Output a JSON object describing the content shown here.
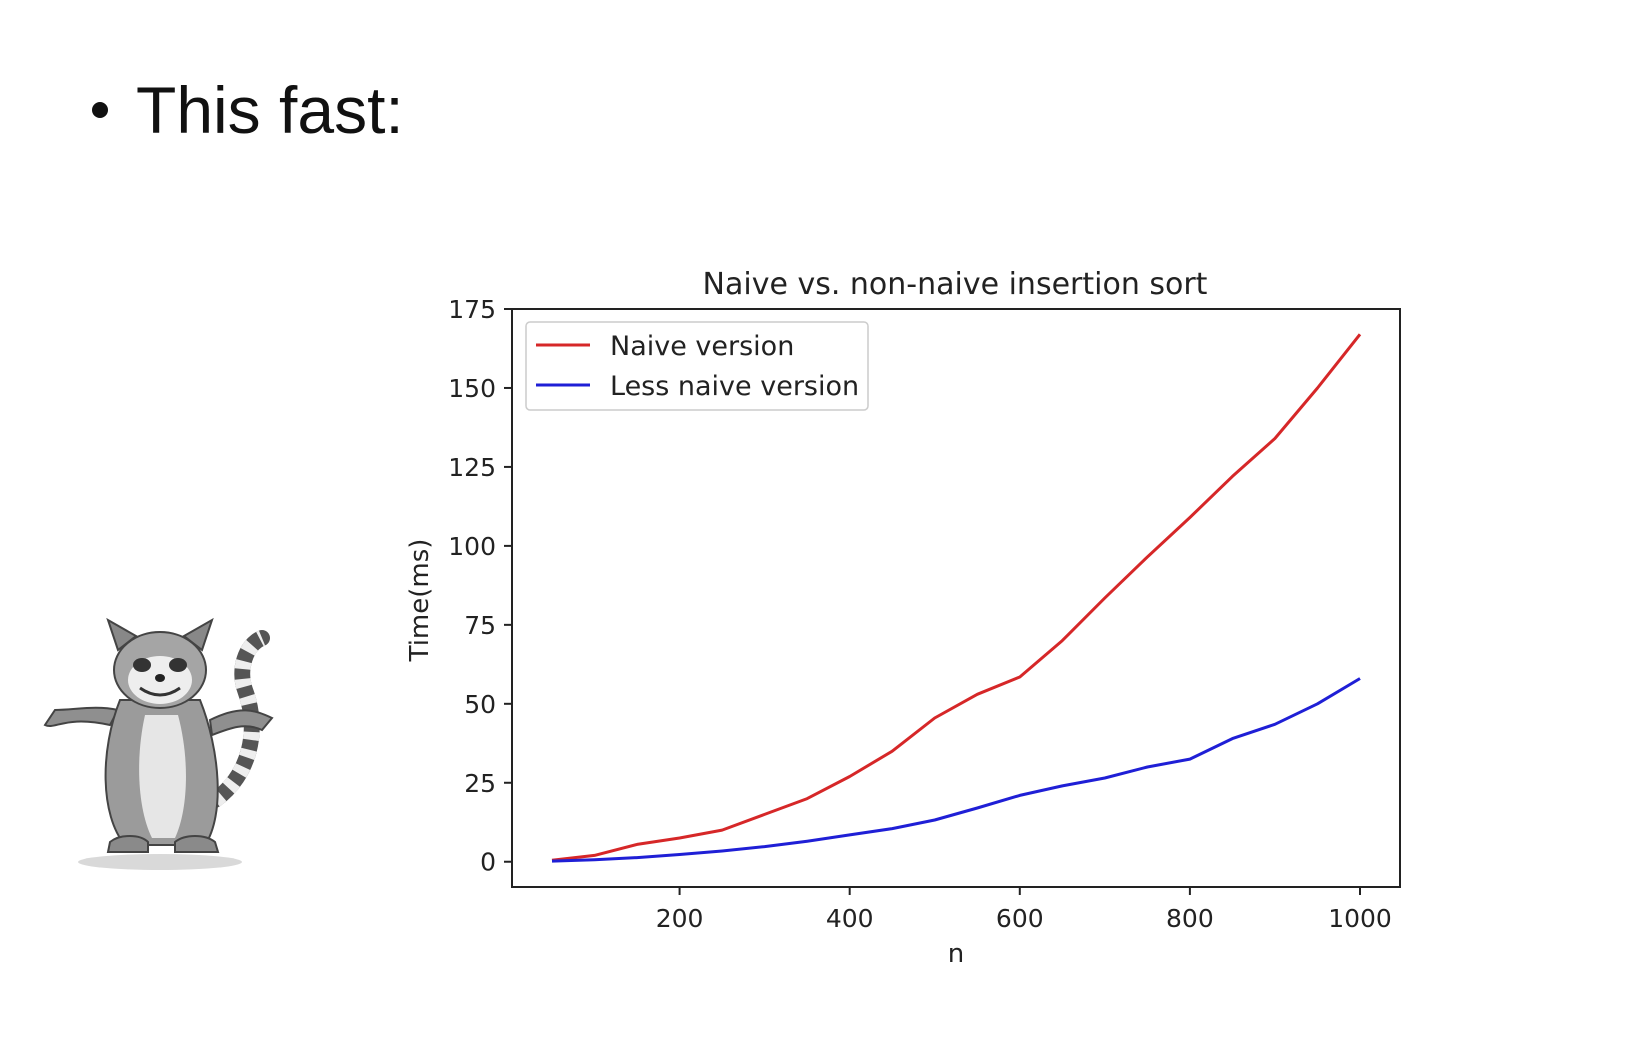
{
  "slide": {
    "bullet_text": "This fast:"
  },
  "colors": {
    "naive": "#d62728",
    "less_naive": "#1f1fd6",
    "axis": "#222222"
  },
  "icons": {
    "mascot": "lemur-cartoon"
  },
  "chart_data": {
    "type": "line",
    "title": "Naive vs. non-naive insertion sort",
    "xlabel": "n",
    "ylabel": "Time(ms)",
    "xlim": [
      50,
      1000
    ],
    "ylim": [
      -8,
      175
    ],
    "xticks": [
      200,
      400,
      600,
      800,
      1000
    ],
    "yticks": [
      0,
      25,
      50,
      75,
      100,
      125,
      150,
      175
    ],
    "legend_position": "top-left",
    "grid": false,
    "x": [
      50,
      100,
      150,
      200,
      250,
      300,
      350,
      400,
      450,
      500,
      550,
      600,
      650,
      700,
      750,
      800,
      850,
      900,
      950,
      1000
    ],
    "series": [
      {
        "name": "Naive version",
        "color": "#d62728",
        "values": [
          0.5,
          2,
          5.5,
          7.5,
          10,
          15,
          20,
          27,
          35,
          45.5,
          53,
          58.5,
          70,
          83.5,
          96.5,
          109,
          122,
          134,
          150,
          167
        ]
      },
      {
        "name": "Less naive version",
        "color": "#1f1fd6",
        "values": [
          0.2,
          0.6,
          1.3,
          2.3,
          3.4,
          4.8,
          6.5,
          8.5,
          10.5,
          13.2,
          17,
          21,
          24,
          26.5,
          30,
          32.5,
          39,
          43.5,
          50,
          58
        ]
      }
    ]
  }
}
